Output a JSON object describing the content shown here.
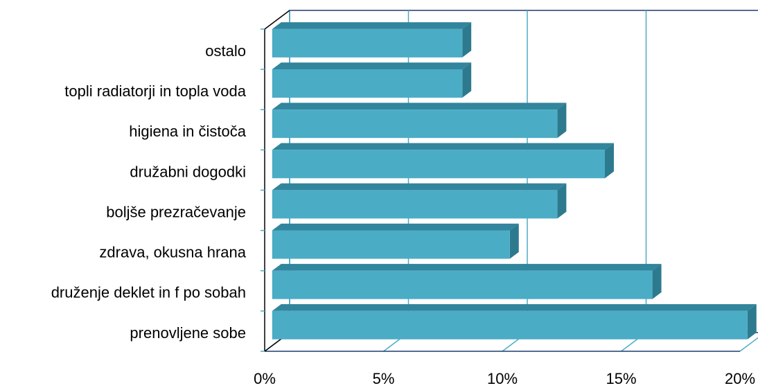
{
  "chart_data": {
    "type": "bar3d_horizontal",
    "categories": [
      "ostalo",
      "topli radiatorji in topla voda",
      "higiena in čistoča",
      "družabni dogodki",
      "boljše prezračevanje",
      "zdrava, okusna hrana",
      "druženje deklet in f po sobah",
      "prenovljene sobe"
    ],
    "values": [
      8,
      8,
      12,
      14,
      12,
      10,
      16,
      20
    ],
    "color": "#4bacc6",
    "xlim": [
      0,
      20
    ],
    "xticks": [
      {
        "value": 0,
        "label": "0%"
      },
      {
        "value": 5,
        "label": "5%"
      },
      {
        "value": 10,
        "label": "10%"
      },
      {
        "value": 15,
        "label": "15%"
      },
      {
        "value": 20,
        "label": "20%"
      }
    ],
    "grid": true
  }
}
